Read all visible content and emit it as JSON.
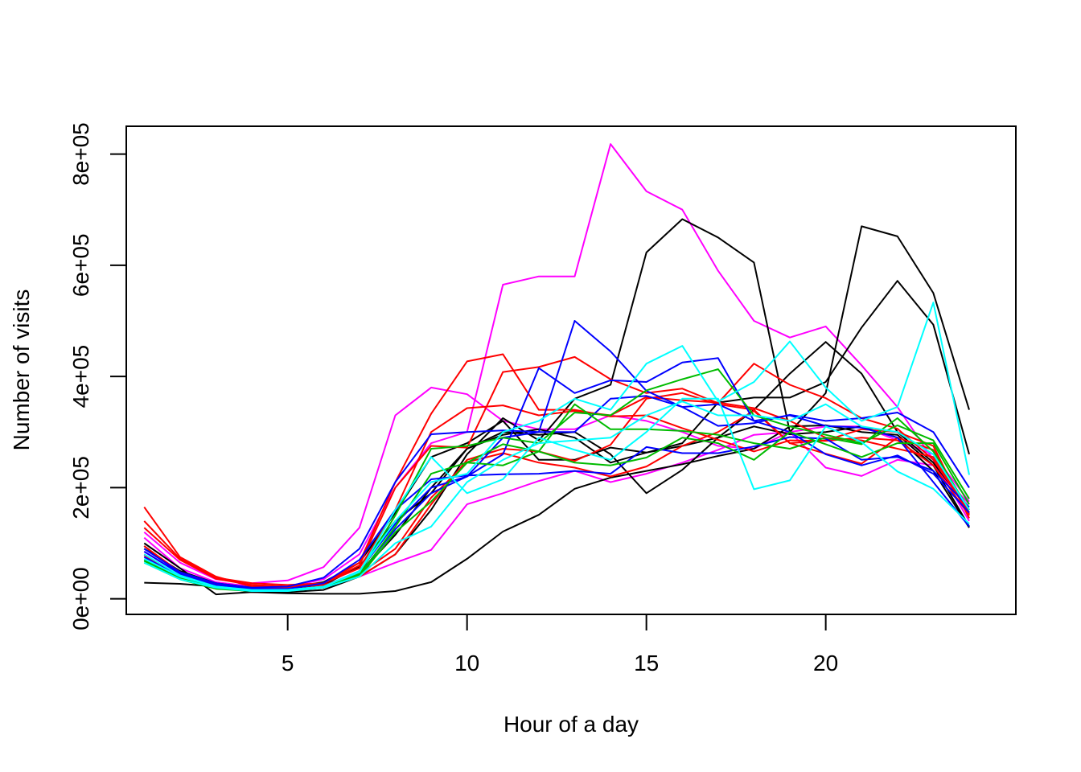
{
  "chart_data": {
    "type": "line",
    "title": "",
    "xlabel": "Hour of a day",
    "ylabel": "Number of visits",
    "xlim": [
      0.5,
      25.3
    ],
    "ylim": [
      -28000,
      850000
    ],
    "x_ticks": [
      5,
      10,
      15,
      20
    ],
    "x_tick_labels": [
      "5",
      "10",
      "15",
      "20"
    ],
    "y_ticks": [
      0,
      200000,
      400000,
      600000,
      800000
    ],
    "y_tick_labels": [
      "0e+00",
      "2e+05",
      "4e+05",
      "6e+05",
      "8e+05"
    ],
    "grid": false,
    "legend": "none",
    "x": [
      1,
      2,
      3,
      4,
      5,
      6,
      7,
      8,
      9,
      10,
      11,
      12,
      13,
      14,
      15,
      16,
      17,
      18,
      19,
      20,
      21,
      22,
      23,
      24
    ],
    "series": [
      {
        "color": "#FF00FF",
        "values": [
          120000,
          65000,
          35000,
          28000,
          33000,
          57000,
          128000,
          330000,
          380000,
          368000,
          320000,
          305000,
          305000,
          330000,
          320000,
          300000,
          275000,
          270000,
          300000,
          310000,
          310000,
          285000,
          260000,
          175000
        ]
      },
      {
        "color": "#FF00FF",
        "values": [
          110000,
          55000,
          30000,
          22000,
          22000,
          35000,
          80000,
          200000,
          280000,
          300000,
          565000,
          580000,
          580000,
          818000,
          733000,
          700000,
          590000,
          500000,
          470000,
          490000,
          420000,
          345000,
          250000,
          140000
        ]
      },
      {
        "color": "#FF00FF",
        "values": [
          85000,
          45000,
          25000,
          18000,
          18000,
          22000,
          40000,
          65000,
          88000,
          170000,
          190000,
          212000,
          230000,
          210000,
          225000,
          245000,
          268000,
          295000,
          300000,
          236000,
          221000,
          250000,
          240000,
          170000
        ]
      },
      {
        "color": "#000000",
        "values": [
          29000,
          27000,
          22000,
          12000,
          10000,
          9000,
          9000,
          14000,
          30000,
          72000,
          121000,
          151000,
          198000,
          218000,
          230000,
          242000,
          257000,
          270000,
          310000,
          312000,
          300000,
          295000,
          240000,
          130000
        ]
      },
      {
        "color": "#000000",
        "values": [
          100000,
          55000,
          8000,
          12000,
          12000,
          16000,
          40000,
          80000,
          160000,
          260000,
          325000,
          285000,
          360000,
          385000,
          623000,
          683000,
          650000,
          605000,
          300000,
          370000,
          670000,
          652000,
          550000,
          340000
        ]
      },
      {
        "color": "#000000",
        "values": [
          90000,
          50000,
          28000,
          20000,
          20000,
          30000,
          65000,
          155000,
          255000,
          280000,
          320000,
          250000,
          250000,
          272000,
          263000,
          280000,
          353000,
          362000,
          362000,
          390000,
          488000,
          572000,
          493000,
          260000
        ]
      },
      {
        "color": "#000000",
        "values": [
          95000,
          45000,
          24000,
          18000,
          18000,
          25000,
          58000,
          140000,
          190000,
          270000,
          300000,
          295000,
          300000,
          260000,
          190000,
          232000,
          290000,
          340000,
          405000,
          462000,
          405000,
          300000,
          245000,
          160000
        ]
      },
      {
        "color": "#000000",
        "values": [
          80000,
          40000,
          22000,
          16000,
          16000,
          22000,
          45000,
          115000,
          200000,
          270000,
          295000,
          305000,
          290000,
          245000,
          263000,
          275000,
          290000,
          310000,
          296000,
          300000,
          310000,
          290000,
          230000,
          128000
        ]
      },
      {
        "color": "#FF0000",
        "values": [
          165000,
          75000,
          40000,
          22000,
          22000,
          28000,
          55000,
          160000,
          300000,
          343000,
          348000,
          330000,
          338000,
          330000,
          363000,
          357000,
          353000,
          343000,
          320000,
          290000,
          285000,
          270000,
          255000,
          155000
        ]
      },
      {
        "color": "#FF0000",
        "values": [
          140000,
          72000,
          38000,
          28000,
          25000,
          28000,
          65000,
          210000,
          333000,
          427000,
          440000,
          340000,
          340000,
          328000,
          330000,
          307000,
          286000,
          265000,
          285000,
          284000,
          290000,
          285000,
          240000,
          150000
        ]
      },
      {
        "color": "#FF0000",
        "values": [
          128000,
          70000,
          36000,
          25000,
          22000,
          28000,
          60000,
          200000,
          275000,
          272000,
          408000,
          417000,
          435000,
          395000,
          370000,
          378000,
          352000,
          423000,
          385000,
          361000,
          325000,
          306000,
          250000,
          155000
        ]
      },
      {
        "color": "#FF0000",
        "values": [
          95000,
          48000,
          26000,
          20000,
          20000,
          25000,
          45000,
          90000,
          182000,
          246000,
          262000,
          245000,
          236000,
          220000,
          238000,
          275000,
          300000,
          338000,
          280000,
          261000,
          243000,
          290000,
          268000,
          152000
        ]
      },
      {
        "color": "#FF0000",
        "values": [
          78000,
          40000,
          22000,
          16000,
          16000,
          22000,
          40000,
          80000,
          170000,
          250000,
          270000,
          265000,
          248000,
          277000,
          360000,
          370000,
          350000,
          340000,
          280000,
          285000,
          305000,
          300000,
          275000,
          145000
        ]
      },
      {
        "color": "#0000FF",
        "values": [
          90000,
          48000,
          28000,
          20000,
          22000,
          38000,
          90000,
          210000,
          296000,
          300000,
          303000,
          300000,
          500000,
          445000,
          374000,
          345000,
          311000,
          316000,
          331000,
          320000,
          325000,
          335000,
          300000,
          200000
        ]
      },
      {
        "color": "#0000FF",
        "values": [
          85000,
          45000,
          25000,
          18000,
          18000,
          28000,
          70000,
          160000,
          215000,
          222000,
          224000,
          225000,
          230000,
          225000,
          273000,
          262000,
          262000,
          274000,
          291000,
          288000,
          250000,
          255000,
          230000,
          165000
        ]
      },
      {
        "color": "#0000FF",
        "values": [
          75000,
          40000,
          22000,
          16000,
          16000,
          22000,
          50000,
          135000,
          200000,
          220000,
          260000,
          415000,
          370000,
          393000,
          390000,
          425000,
          433000,
          320000,
          330000,
          311000,
          308000,
          290000,
          210000,
          130000
        ]
      },
      {
        "color": "#0000FF",
        "values": [
          70000,
          38000,
          20000,
          15000,
          16000,
          20000,
          45000,
          125000,
          190000,
          220000,
          290000,
          300000,
          300000,
          360000,
          365000,
          345000,
          350000,
          320000,
          300000,
          260000,
          240000,
          258000,
          225000,
          155000
        ]
      },
      {
        "color": "#00BB00",
        "values": [
          70000,
          38000,
          20000,
          15000,
          15000,
          20000,
          45000,
          150000,
          270000,
          275000,
          290000,
          280000,
          335000,
          330000,
          375000,
          395000,
          413000,
          330000,
          310000,
          295000,
          280000,
          312000,
          285000,
          180000
        ]
      },
      {
        "color": "#00BB00",
        "values": [
          68000,
          36000,
          20000,
          14000,
          15000,
          20000,
          40000,
          120000,
          175000,
          245000,
          240000,
          265000,
          245000,
          240000,
          254000,
          290000,
          280000,
          250000,
          300000,
          278000,
          255000,
          280000,
          280000,
          170000
        ]
      },
      {
        "color": "#00BB00",
        "values": [
          65000,
          35000,
          18000,
          14000,
          14000,
          20000,
          42000,
          130000,
          225000,
          245000,
          278000,
          265000,
          350000,
          305000,
          305000,
          302000,
          295000,
          280000,
          270000,
          290000,
          278000,
          325000,
          265000,
          160000
        ]
      },
      {
        "color": "#00FFFF",
        "values": [
          72000,
          40000,
          22000,
          16000,
          16000,
          22000,
          48000,
          160000,
          255000,
          190000,
          215000,
          290000,
          268000,
          250000,
          300000,
          360000,
          360000,
          197000,
          213000,
          310000,
          282000,
          229000,
          198000,
          135000
        ]
      },
      {
        "color": "#00FFFF",
        "values": [
          80000,
          42000,
          22000,
          15000,
          16000,
          22000,
          50000,
          140000,
          210000,
          225000,
          300000,
          320000,
          360000,
          340000,
          423000,
          455000,
          355000,
          390000,
          463000,
          380000,
          320000,
          345000,
          533000,
          223000
        ]
      },
      {
        "color": "#00FFFF",
        "values": [
          65000,
          35000,
          20000,
          14000,
          14000,
          20000,
          40000,
          100000,
          130000,
          210000,
          250000,
          280000,
          285000,
          290000,
          330000,
          355000,
          330000,
          330000,
          320000,
          350000,
          310000,
          300000,
          260000,
          160000
        ]
      }
    ]
  }
}
